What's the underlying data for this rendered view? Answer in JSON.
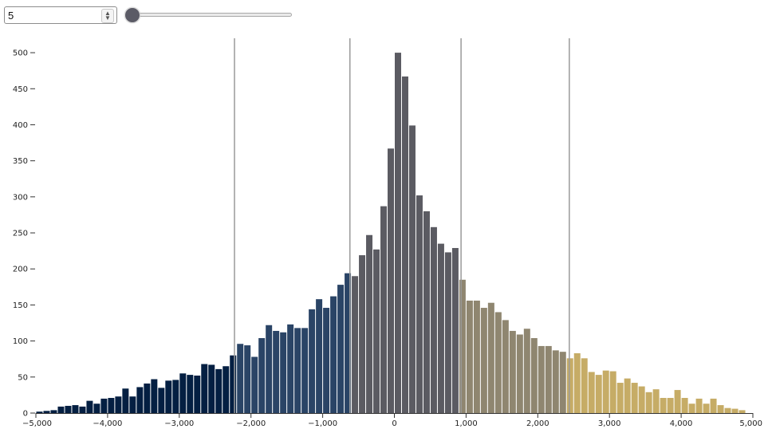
{
  "controls": {
    "number_value": "5",
    "slider_value": 5,
    "slider_min": 5,
    "slider_max": 50
  },
  "chart_data": {
    "type": "bar",
    "title": "",
    "xlabel": "",
    "ylabel": "",
    "xlim": [
      -5000,
      5000
    ],
    "ylim": [
      0,
      520
    ],
    "bin_width": 100,
    "x_ticks": [
      -5000,
      -4000,
      -3000,
      -2000,
      -1000,
      0,
      1000,
      2000,
      3000,
      4000,
      5000
    ],
    "x_tick_labels": [
      "−5,000",
      "−4,000",
      "−3,000",
      "−2,000",
      "−1,000",
      "0",
      "1,000",
      "2,000",
      "3,000",
      "4,000",
      "5,000"
    ],
    "y_ticks": [
      0,
      50,
      100,
      150,
      200,
      250,
      300,
      350,
      400,
      450,
      500
    ],
    "y_tick_labels": [
      "0",
      "50",
      "100",
      "150",
      "200",
      "250",
      "300",
      "350",
      "400",
      "450",
      "500"
    ],
    "thresholds": [
      -2230,
      -620,
      930,
      2440
    ],
    "class_colors": [
      "#041f42",
      "#2a4466",
      "#5b5b62",
      "#8f8670",
      "#c6ac66"
    ],
    "bin_starts": [
      -5000,
      -4900,
      -4800,
      -4700,
      -4600,
      -4500,
      -4400,
      -4300,
      -4200,
      -4100,
      -4000,
      -3900,
      -3800,
      -3700,
      -3600,
      -3500,
      -3400,
      -3300,
      -3200,
      -3100,
      -3000,
      -2900,
      -2800,
      -2700,
      -2600,
      -2500,
      -2400,
      -2300,
      -2200,
      -2100,
      -2000,
      -1900,
      -1800,
      -1700,
      -1600,
      -1500,
      -1400,
      -1300,
      -1200,
      -1100,
      -1000,
      -900,
      -800,
      -700,
      -600,
      -500,
      -400,
      -300,
      -200,
      -100,
      0,
      100,
      200,
      300,
      400,
      500,
      600,
      700,
      800,
      900,
      1000,
      1100,
      1200,
      1300,
      1400,
      1500,
      1600,
      1700,
      1800,
      1900,
      2000,
      2100,
      2200,
      2300,
      2400,
      2500,
      2600,
      2700,
      2800,
      2900,
      3000,
      3100,
      3200,
      3300,
      3400,
      3500,
      3600,
      3700,
      3800,
      3900,
      4000,
      4100,
      4200,
      4300,
      4400,
      4500,
      4600,
      4700,
      4800,
      4900
    ],
    "values": [
      2,
      3,
      4,
      9,
      10,
      11,
      9,
      17,
      13,
      20,
      21,
      23,
      34,
      23,
      36,
      41,
      47,
      35,
      45,
      46,
      55,
      53,
      52,
      68,
      67,
      61,
      65,
      80,
      96,
      94,
      78,
      104,
      122,
      114,
      112,
      123,
      118,
      118,
      144,
      158,
      146,
      162,
      178,
      194,
      190,
      219,
      247,
      227,
      287,
      367,
      500,
      467,
      399,
      302,
      280,
      258,
      235,
      223,
      229,
      185,
      156,
      156,
      146,
      153,
      140,
      129,
      114,
      109,
      117,
      104,
      93,
      93,
      87,
      85,
      76,
      83,
      76,
      57,
      53,
      59,
      58,
      42,
      48,
      42,
      37,
      29,
      33,
      21,
      21,
      32,
      21,
      13,
      20,
      13,
      20,
      11,
      7,
      6,
      4,
      0
    ]
  }
}
